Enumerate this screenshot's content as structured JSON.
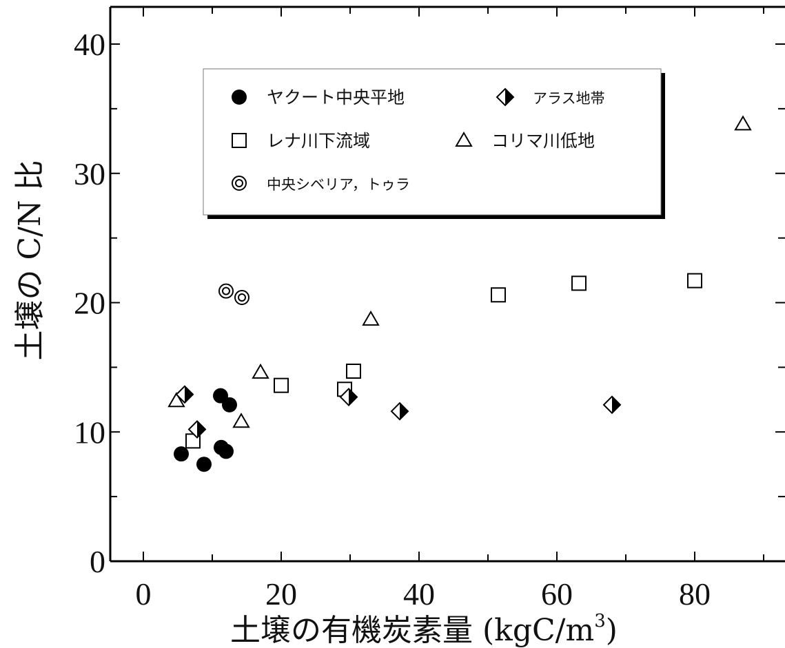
{
  "chart_data": {
    "type": "scatter",
    "xlabel_main": "土壌の有機炭素量 (kgC/m",
    "xlabel_sup": "3",
    "xlabel_close": ")",
    "ylabel": "土壌の C/N 比",
    "xlim": [
      -5,
      93
    ],
    "ylim": [
      0,
      43
    ],
    "xticks": [
      0,
      20,
      40,
      60,
      80
    ],
    "yticks": [
      0,
      10,
      20,
      30,
      40
    ],
    "legend_position": "upper-left inside, two columns",
    "series": [
      {
        "name": "ヤクート中央平地",
        "marker": "filled-circle",
        "points": [
          [
            5.5,
            8.3
          ],
          [
            8.8,
            7.5
          ],
          [
            11.2,
            12.8
          ],
          [
            12.5,
            12.1
          ],
          [
            11.3,
            8.8
          ],
          [
            12.0,
            8.5
          ]
        ]
      },
      {
        "name": "アラス地帯",
        "marker": "half-filled-diamond",
        "points": [
          [
            6.0,
            12.9
          ],
          [
            7.8,
            10.2
          ],
          [
            29.8,
            12.7
          ],
          [
            37.2,
            11.6
          ],
          [
            68.0,
            12.1
          ]
        ]
      },
      {
        "name": "レナ川下流域",
        "marker": "open-square",
        "points": [
          [
            7.2,
            9.3
          ],
          [
            20.0,
            13.6
          ],
          [
            29.2,
            13.3
          ],
          [
            30.5,
            14.7
          ],
          [
            51.5,
            20.6
          ],
          [
            63.2,
            21.5
          ],
          [
            80.0,
            21.7
          ]
        ]
      },
      {
        "name": "コリマ川低地",
        "marker": "open-triangle",
        "points": [
          [
            4.8,
            12.4
          ],
          [
            17.0,
            14.6
          ],
          [
            14.2,
            10.8
          ],
          [
            33.0,
            18.7
          ],
          [
            87.0,
            33.8
          ]
        ]
      },
      {
        "name": "中央シベリア，トゥラ",
        "marker": "double-circle",
        "points": [
          [
            12.0,
            20.9
          ],
          [
            14.3,
            20.4
          ]
        ]
      }
    ]
  }
}
